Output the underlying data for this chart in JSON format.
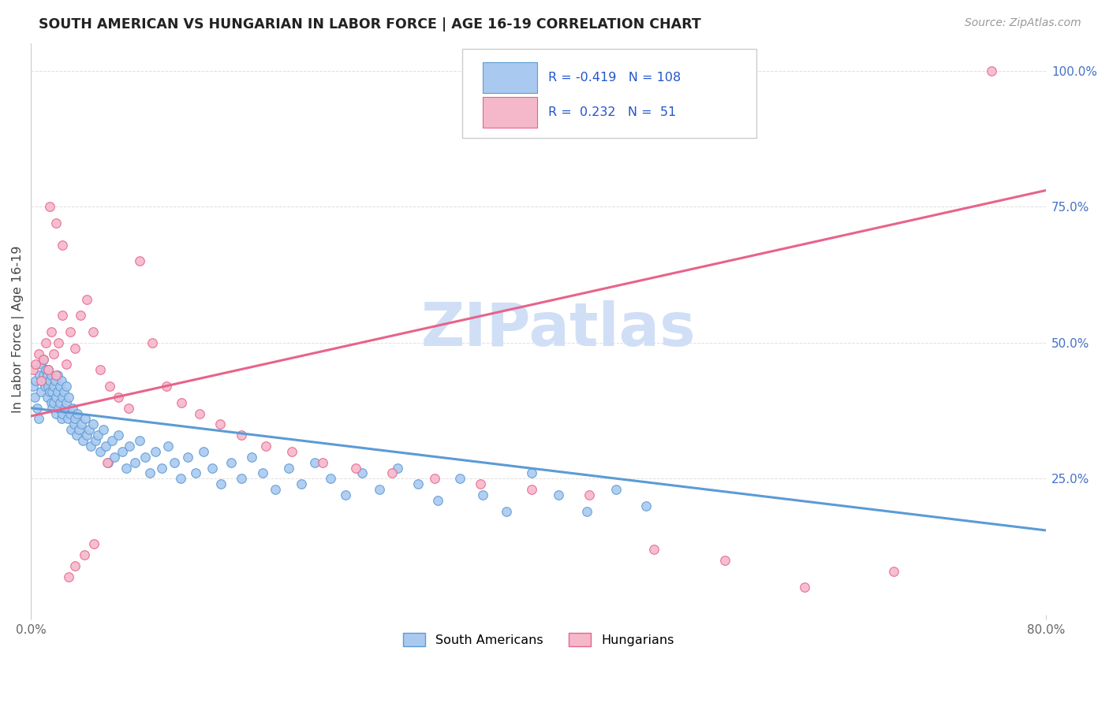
{
  "title": "SOUTH AMERICAN VS HUNGARIAN IN LABOR FORCE | AGE 16-19 CORRELATION CHART",
  "source": "Source: ZipAtlas.com",
  "ylabel": "In Labor Force | Age 16-19",
  "xlim": [
    0.0,
    0.8
  ],
  "ylim": [
    0.0,
    1.05
  ],
  "blue_R": -0.419,
  "blue_N": 108,
  "pink_R": 0.232,
  "pink_N": 51,
  "blue_color": "#aac9f0",
  "pink_color": "#f5b8cb",
  "blue_edge_color": "#5b9bd5",
  "pink_edge_color": "#e8638a",
  "legend_text_color": "#2255cc",
  "watermark": "ZIPatlas",
  "watermark_color": "#d0dff5",
  "blue_line_x": [
    0.0,
    0.8
  ],
  "blue_line_y": [
    0.38,
    0.155
  ],
  "pink_line_x": [
    0.0,
    0.8
  ],
  "pink_line_y": [
    0.365,
    0.78
  ],
  "blue_scatter_x": [
    0.002,
    0.003,
    0.004,
    0.005,
    0.006,
    0.007,
    0.008,
    0.008,
    0.009,
    0.01,
    0.01,
    0.011,
    0.012,
    0.012,
    0.013,
    0.013,
    0.014,
    0.014,
    0.015,
    0.015,
    0.016,
    0.016,
    0.017,
    0.017,
    0.018,
    0.018,
    0.019,
    0.02,
    0.02,
    0.021,
    0.021,
    0.022,
    0.023,
    0.023,
    0.024,
    0.024,
    0.025,
    0.025,
    0.026,
    0.027,
    0.028,
    0.028,
    0.029,
    0.03,
    0.031,
    0.032,
    0.033,
    0.034,
    0.035,
    0.036,
    0.037,
    0.038,
    0.04,
    0.041,
    0.043,
    0.044,
    0.046,
    0.047,
    0.049,
    0.051,
    0.053,
    0.055,
    0.057,
    0.059,
    0.061,
    0.064,
    0.066,
    0.069,
    0.072,
    0.075,
    0.078,
    0.082,
    0.086,
    0.09,
    0.094,
    0.098,
    0.103,
    0.108,
    0.113,
    0.118,
    0.124,
    0.13,
    0.136,
    0.143,
    0.15,
    0.158,
    0.166,
    0.174,
    0.183,
    0.193,
    0.203,
    0.213,
    0.224,
    0.236,
    0.248,
    0.261,
    0.275,
    0.289,
    0.305,
    0.321,
    0.338,
    0.356,
    0.375,
    0.395,
    0.416,
    0.438,
    0.461,
    0.485
  ],
  "blue_scatter_y": [
    0.42,
    0.4,
    0.43,
    0.38,
    0.36,
    0.44,
    0.41,
    0.46,
    0.43,
    0.47,
    0.44,
    0.42,
    0.45,
    0.43,
    0.4,
    0.44,
    0.42,
    0.45,
    0.43,
    0.41,
    0.39,
    0.44,
    0.41,
    0.38,
    0.42,
    0.39,
    0.43,
    0.4,
    0.37,
    0.44,
    0.41,
    0.38,
    0.42,
    0.39,
    0.36,
    0.43,
    0.4,
    0.37,
    0.41,
    0.38,
    0.42,
    0.39,
    0.36,
    0.4,
    0.37,
    0.34,
    0.38,
    0.35,
    0.36,
    0.33,
    0.37,
    0.34,
    0.35,
    0.32,
    0.36,
    0.33,
    0.34,
    0.31,
    0.35,
    0.32,
    0.33,
    0.3,
    0.34,
    0.31,
    0.28,
    0.32,
    0.29,
    0.33,
    0.3,
    0.27,
    0.31,
    0.28,
    0.32,
    0.29,
    0.26,
    0.3,
    0.27,
    0.31,
    0.28,
    0.25,
    0.29,
    0.26,
    0.3,
    0.27,
    0.24,
    0.28,
    0.25,
    0.29,
    0.26,
    0.23,
    0.27,
    0.24,
    0.28,
    0.25,
    0.22,
    0.26,
    0.23,
    0.27,
    0.24,
    0.21,
    0.25,
    0.22,
    0.19,
    0.26,
    0.22,
    0.19,
    0.23,
    0.2
  ],
  "pink_scatter_x": [
    0.002,
    0.004,
    0.006,
    0.008,
    0.01,
    0.012,
    0.014,
    0.016,
    0.018,
    0.02,
    0.022,
    0.025,
    0.028,
    0.031,
    0.035,
    0.039,
    0.044,
    0.049,
    0.055,
    0.062,
    0.069,
    0.077,
    0.086,
    0.096,
    0.107,
    0.119,
    0.133,
    0.149,
    0.166,
    0.185,
    0.206,
    0.23,
    0.256,
    0.285,
    0.318,
    0.354,
    0.395,
    0.44,
    0.491,
    0.547,
    0.61,
    0.68,
    0.757,
    0.015,
    0.02,
    0.025,
    0.03,
    0.035,
    0.042,
    0.05,
    0.06
  ],
  "pink_scatter_y": [
    0.45,
    0.46,
    0.48,
    0.43,
    0.47,
    0.5,
    0.45,
    0.52,
    0.48,
    0.44,
    0.5,
    0.55,
    0.46,
    0.52,
    0.49,
    0.55,
    0.58,
    0.52,
    0.45,
    0.42,
    0.4,
    0.38,
    0.65,
    0.5,
    0.42,
    0.39,
    0.37,
    0.35,
    0.33,
    0.31,
    0.3,
    0.28,
    0.27,
    0.26,
    0.25,
    0.24,
    0.23,
    0.22,
    0.12,
    0.1,
    0.05,
    0.08,
    1.0,
    0.75,
    0.72,
    0.68,
    0.07,
    0.09,
    0.11,
    0.13,
    0.28
  ],
  "grid_color": "#e0e0e0",
  "axis_label_color": "#666666",
  "right_tick_color": "#4472c4"
}
